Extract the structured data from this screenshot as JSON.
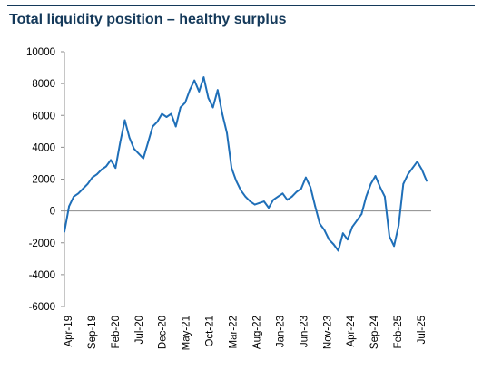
{
  "header": {
    "title": "Total liquidity position – healthy surplus",
    "rule_color": "#14395a",
    "title_color": "#14395a"
  },
  "chart_data": {
    "type": "line",
    "title": "Total liquidity position – healthy surplus",
    "xlabel": "",
    "ylabel": "",
    "ylim": [
      -6000,
      10000
    ],
    "yticks": [
      -6000,
      -4000,
      -2000,
      0,
      2000,
      4000,
      6000,
      8000,
      10000
    ],
    "ytick_labels": [
      "-6000",
      "-4000",
      "-2000",
      "0",
      "2000",
      "4000",
      "6000",
      "8000",
      "10000"
    ],
    "xlim": [
      "2019-04",
      "2025-11"
    ],
    "xtick_labels": [
      "Apr-19",
      "Sep-19",
      "Feb-20",
      "Jul-20",
      "Dec-20",
      "May-21",
      "Oct-21",
      "Mar-22",
      "Aug-22",
      "Jan-23",
      "Jun-23",
      "Nov-23",
      "Apr-24",
      "Sep-24",
      "Feb-25",
      "Jul-25"
    ],
    "grid": false,
    "legend": "none",
    "line_color": "#1f6fb8",
    "series": [
      {
        "x": [
          "2019-04",
          "2019-05",
          "2019-06",
          "2019-07",
          "2019-08",
          "2019-09",
          "2019-10",
          "2019-11",
          "2019-12",
          "2020-01",
          "2020-02",
          "2020-03",
          "2020-04",
          "2020-05",
          "2020-06",
          "2020-07",
          "2020-08",
          "2020-09",
          "2020-10",
          "2020-11",
          "2020-12",
          "2021-01",
          "2021-02",
          "2021-03",
          "2021-04",
          "2021-05",
          "2021-06",
          "2021-07",
          "2021-08",
          "2021-09",
          "2021-10",
          "2021-11",
          "2021-12",
          "2022-01",
          "2022-02",
          "2022-03",
          "2022-04",
          "2022-05",
          "2022-06",
          "2022-07",
          "2022-08",
          "2022-09",
          "2022-10",
          "2022-11",
          "2022-12",
          "2023-01",
          "2023-02",
          "2023-03",
          "2023-04",
          "2023-05",
          "2023-06",
          "2023-07",
          "2023-08",
          "2023-09",
          "2023-10",
          "2023-11",
          "2023-12",
          "2024-01",
          "2024-02",
          "2024-03",
          "2024-04",
          "2024-05",
          "2024-06",
          "2024-07",
          "2024-08",
          "2024-09",
          "2024-10",
          "2024-11",
          "2024-12",
          "2025-01",
          "2025-02",
          "2025-03",
          "2025-04",
          "2025-05",
          "2025-06",
          "2025-07",
          "2025-08",
          "2025-09",
          "2025-10"
        ],
        "values": [
          -1300,
          300,
          900,
          1100,
          1400,
          1700,
          2100,
          2300,
          2600,
          2800,
          3200,
          2700,
          4300,
          5700,
          4600,
          3900,
          3600,
          3300,
          4300,
          5300,
          5600,
          6100,
          5900,
          6100,
          5300,
          6500,
          6800,
          7600,
          8200,
          7500,
          8400,
          7100,
          6500,
          7600,
          6100,
          4900,
          2700,
          1900,
          1300,
          900,
          600,
          400,
          500,
          600,
          200,
          700,
          900,
          1100,
          700,
          900,
          1200,
          1400,
          2100,
          1500,
          300,
          -800,
          -1200,
          -1800,
          -2100,
          -2500,
          -1400,
          -1800,
          -1000,
          -600,
          -200,
          900,
          1700,
          2200,
          1500,
          900,
          -1600,
          -2200,
          -900,
          1700,
          2300,
          2700,
          3100,
          2600,
          1900
        ]
      }
    ]
  }
}
